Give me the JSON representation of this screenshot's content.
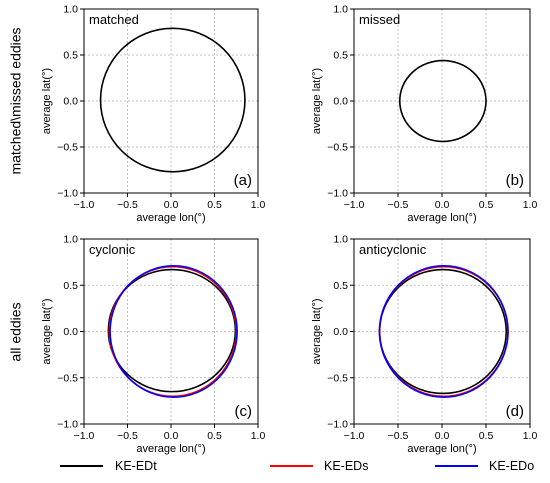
{
  "row_labels": [
    "matched\\missed eddies",
    "all eddies"
  ],
  "legend": [
    {
      "label": "KE-EDt",
      "color": "#000000"
    },
    {
      "label": "KE-EDs",
      "color": "#ff0000"
    },
    {
      "label": "KE-EDo",
      "color": "#0000ff"
    }
  ],
  "chart_data": [
    {
      "type": "line",
      "panel": "(a)",
      "inner_label": "matched",
      "xlabel": "average lon(°)",
      "ylabel": "average lat(°)",
      "xlim": [
        -1.0,
        1.0
      ],
      "ylim": [
        -1.0,
        1.0
      ],
      "xticks": [
        "−1.0",
        "−0.5",
        "0.0",
        "0.5",
        "1.0"
      ],
      "yticks": [
        "−1.0",
        "−0.5",
        "0.0",
        "0.5",
        "1.0"
      ],
      "grid": true,
      "series": [
        {
          "color": "#000000",
          "shape": "ellipse",
          "cx": 0.02,
          "cy": 0.01,
          "rx": 0.83,
          "ry": 0.78
        }
      ]
    },
    {
      "type": "line",
      "panel": "(b)",
      "inner_label": "missed",
      "xlabel": "average lon(°)",
      "ylabel": "average lat(°)",
      "xlim": [
        -1.0,
        1.0
      ],
      "ylim": [
        -1.0,
        1.0
      ],
      "xticks": [
        "−1.0",
        "−0.5",
        "0.0",
        "0.5",
        "1.0"
      ],
      "yticks": [
        "−1.0",
        "−0.5",
        "0.0",
        "0.5",
        "1.0"
      ],
      "grid": true,
      "series": [
        {
          "color": "#000000",
          "shape": "ellipse",
          "cx": 0.01,
          "cy": 0.0,
          "rx": 0.49,
          "ry": 0.44
        }
      ]
    },
    {
      "type": "line",
      "panel": "(c)",
      "inner_label": "cyclonic",
      "xlabel": "average lon(°)",
      "ylabel": "average lat(°)",
      "xlim": [
        -1.0,
        1.0
      ],
      "ylim": [
        -1.0,
        1.0
      ],
      "xticks": [
        "−1.0",
        "−0.5",
        "0.0",
        "0.5",
        "1.0"
      ],
      "yticks": [
        "−1.0",
        "−0.5",
        "0.0",
        "0.5",
        "1.0"
      ],
      "grid": true,
      "series": [
        {
          "name": "KE-EDt",
          "color": "#000000",
          "shape": "ellipse",
          "cx": 0.01,
          "cy": 0.01,
          "rx": 0.73,
          "ry": 0.66
        },
        {
          "name": "KE-EDs",
          "color": "#ff0000",
          "shape": "ellipse",
          "cx": 0.02,
          "cy": 0.0,
          "rx": 0.73,
          "ry": 0.7
        },
        {
          "name": "KE-EDo",
          "color": "#0000ff",
          "shape": "ellipse",
          "cx": 0.03,
          "cy": 0.0,
          "rx": 0.73,
          "ry": 0.71
        }
      ]
    },
    {
      "type": "line",
      "panel": "(d)",
      "inner_label": "anticyclonic",
      "xlabel": "average lon(°)",
      "ylabel": "average lat(°)",
      "xlim": [
        -1.0,
        1.0
      ],
      "ylim": [
        -1.0,
        1.0
      ],
      "xticks": [
        "−1.0",
        "−0.5",
        "0.0",
        "0.5",
        "1.0"
      ],
      "yticks": [
        "−1.0",
        "−0.5",
        "0.0",
        "0.5",
        "1.0"
      ],
      "grid": true,
      "series": [
        {
          "name": "KE-EDt",
          "color": "#000000",
          "shape": "ellipse",
          "cx": 0.01,
          "cy": 0.0,
          "rx": 0.72,
          "ry": 0.67
        },
        {
          "name": "KE-EDs",
          "color": "#ff0000",
          "shape": "ellipse",
          "cx": 0.02,
          "cy": 0.0,
          "rx": 0.73,
          "ry": 0.7
        },
        {
          "name": "KE-EDo",
          "color": "#0000ff",
          "shape": "ellipse",
          "cx": 0.02,
          "cy": 0.0,
          "rx": 0.73,
          "ry": 0.71
        }
      ]
    }
  ]
}
